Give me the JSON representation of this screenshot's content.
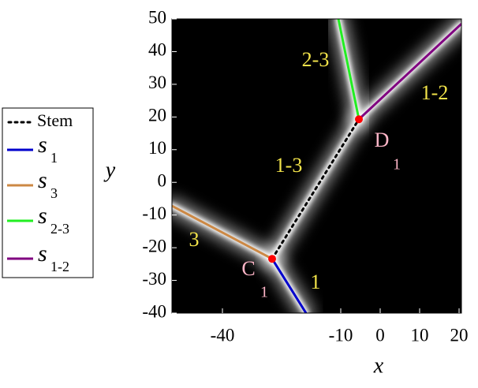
{
  "chart_data": {
    "type": "line",
    "x_label": "x",
    "y_label": "y",
    "xlim": [
      -52.8,
      20.6
    ],
    "ylim": [
      -40,
      50
    ],
    "xticks": [
      -40,
      -10,
      0,
      10,
      20
    ],
    "yticks": [
      50,
      40,
      30,
      20,
      10,
      0,
      -10,
      -20,
      -30,
      -40
    ],
    "background": "#000000",
    "series": [
      {
        "name": "Stem",
        "color": "#000000",
        "dash": "dotted",
        "x": [
          -27.4,
          -5.4
        ],
        "values": [
          -23.4,
          19.3
        ]
      },
      {
        "name": "s",
        "subscript": "1",
        "color": "#0000cc",
        "x": [
          -27.4,
          -18.8
        ],
        "values": [
          -23.4,
          -40
        ]
      },
      {
        "name": "s",
        "subscript": "3",
        "color": "#cc8844",
        "x": [
          -27.4,
          -52.8
        ],
        "values": [
          -23.4,
          -7.2
        ]
      },
      {
        "name": "s",
        "subscript": "2-3",
        "color": "#22ee22",
        "x": [
          -5.4,
          -10.6
        ],
        "values": [
          19.3,
          50
        ]
      },
      {
        "name": "s",
        "subscript": "1-2",
        "color": "#800080",
        "x": [
          -5.4,
          20.6
        ],
        "values": [
          19.3,
          48.5
        ]
      }
    ],
    "markers": {
      "color": "#ff0000",
      "x": [
        -27.4,
        -5.4
      ],
      "values": [
        -23.4,
        19.3
      ]
    },
    "annotations": [
      {
        "text": "2-3"
      },
      {
        "text": "1-2"
      },
      {
        "text": "1-3"
      },
      {
        "text": "3"
      },
      {
        "text": "1"
      },
      {
        "text": "C",
        "subscript": "1"
      },
      {
        "text": "D",
        "subscript": "1"
      }
    ]
  }
}
